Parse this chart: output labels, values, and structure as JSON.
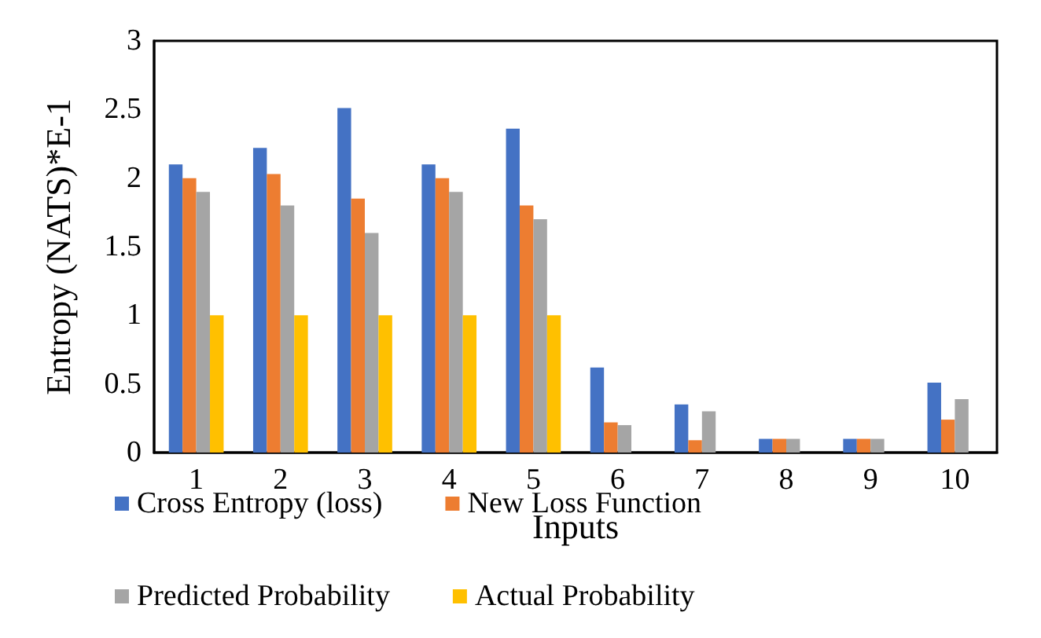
{
  "chart_data": {
    "type": "bar",
    "xlabel": "Inputs",
    "ylabel": "Entropy (NATS)*E-1",
    "categories": [
      "1",
      "2",
      "3",
      "4",
      "5",
      "6",
      "7",
      "8",
      "9",
      "10"
    ],
    "series": [
      {
        "name": "Cross Entropy (loss)",
        "color": "#4472c4",
        "values": [
          2.1,
          2.22,
          2.51,
          2.1,
          2.36,
          0.62,
          0.35,
          0.1,
          0.1,
          0.51
        ]
      },
      {
        "name": "New Loss Function",
        "color": "#ed7d31",
        "values": [
          2.0,
          2.03,
          1.85,
          2.0,
          1.8,
          0.22,
          0.09,
          0.1,
          0.1,
          0.24
        ]
      },
      {
        "name": "Predicted Probability",
        "color": "#a5a5a5",
        "values": [
          1.9,
          1.8,
          1.6,
          1.9,
          1.7,
          0.2,
          0.3,
          0.1,
          0.1,
          0.39
        ]
      },
      {
        "name": "Actual Probability",
        "color": "#ffc000",
        "values": [
          1,
          1,
          1,
          1,
          1,
          0,
          0,
          0,
          0,
          0
        ]
      }
    ],
    "ylim": [
      0,
      3
    ],
    "yticks": [
      0,
      0.5,
      1,
      1.5,
      2,
      2.5,
      3
    ],
    "grid": false,
    "legend": "bottom"
  }
}
